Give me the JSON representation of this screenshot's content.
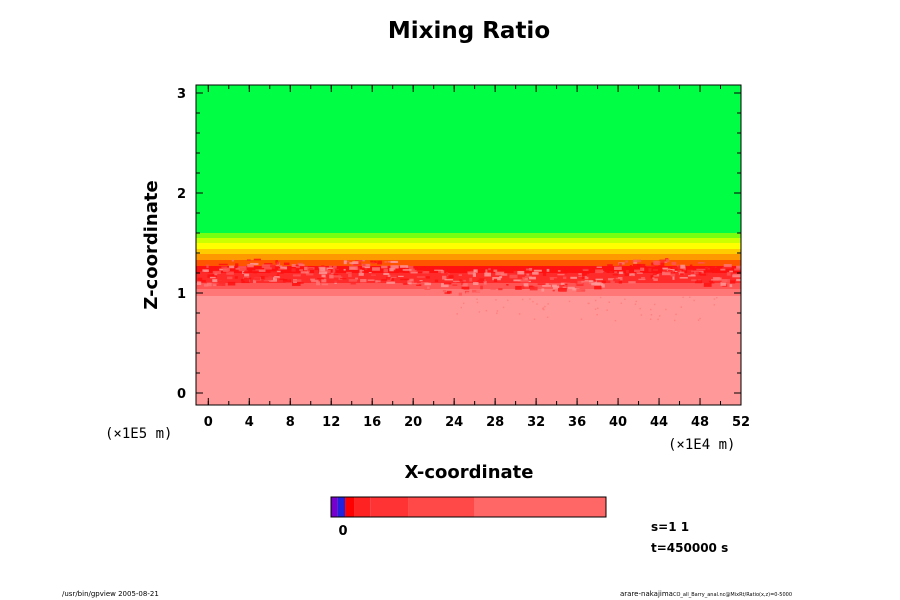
{
  "chart_data": {
    "type": "heatmap",
    "title": "Mixing Ratio",
    "xlabel": "X-coordinate",
    "ylabel": "Z-coordinate",
    "x_unit_label": "(×1E4 m)",
    "y_unit_label": "(×1E5 m)",
    "xlim": [
      -1.2,
      52
    ],
    "ylim": [
      -0.12,
      3.08
    ],
    "x_ticks": [
      "0",
      "4",
      "8",
      "12",
      "16",
      "20",
      "24",
      "28",
      "32",
      "36",
      "40",
      "44",
      "48",
      "52"
    ],
    "y_ticks": [
      "0",
      "1",
      "2",
      "3"
    ],
    "grid": false,
    "bands": [
      {
        "z_from": -0.12,
        "z_to": 0.97,
        "color": "#ff9999"
      },
      {
        "z_from": 0.97,
        "z_to": 1.04,
        "color": "#ff7777"
      },
      {
        "z_from": 1.04,
        "z_to": 1.1,
        "color": "#ff5555"
      },
      {
        "z_from": 1.1,
        "z_to": 1.2,
        "color": "#ff2a2a"
      },
      {
        "z_from": 1.2,
        "z_to": 1.27,
        "color": "#ff1111"
      },
      {
        "z_from": 1.27,
        "z_to": 1.33,
        "color": "#ff5500"
      },
      {
        "z_from": 1.33,
        "z_to": 1.39,
        "color": "#ff9900"
      },
      {
        "z_from": 1.39,
        "z_to": 1.44,
        "color": "#ffcc00"
      },
      {
        "z_from": 1.44,
        "z_to": 1.5,
        "color": "#ffff00"
      },
      {
        "z_from": 1.5,
        "z_to": 1.55,
        "color": "#ccff00"
      },
      {
        "z_from": 1.55,
        "z_to": 1.6,
        "color": "#77ff11"
      },
      {
        "z_from": 1.6,
        "z_to": 3.08,
        "color": "#00ff44"
      }
    ],
    "colorbar": {
      "tick_label": "0",
      "segments": [
        "#7700cc",
        "#2222dd",
        "#ff0000",
        "#ff2222",
        "#ff3333",
        "#ff4848",
        "#ff6666",
        "#ff9999"
      ]
    }
  },
  "info": {
    "s": "s=1 1",
    "t": "t=450000 s"
  },
  "footer": {
    "left": "/usr/bin/gpview 2005-08-21",
    "right_main": "arare-nakajima",
    "right_small": "CO_all_Barry_anal.nc@MixRt/Ratio(x,z)=0-5000"
  },
  "colors": {
    "frame": "#000000",
    "background": "#ffffff"
  }
}
